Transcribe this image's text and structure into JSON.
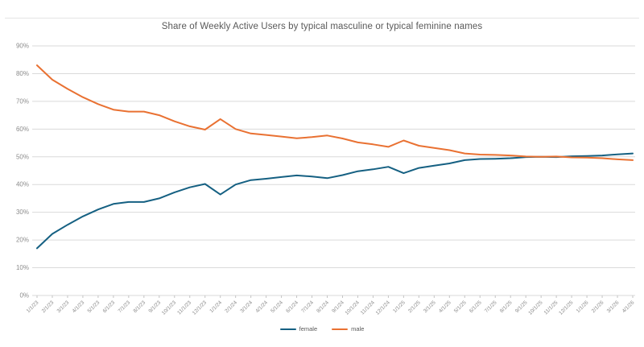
{
  "page": {
    "background": "#ffffff",
    "divider_color": "#e4e4e4"
  },
  "chart_data": {
    "type": "line",
    "title": "Share of Weekly Active Users by typical masculine or typical feminine names",
    "title_color": "#595959",
    "xlabel": "",
    "ylabel": "",
    "ylim": [
      0,
      90
    ],
    "ytick_step": 10,
    "grid": true,
    "gridline_color": "#dadada",
    "axis_tick_color": "#c3c3c3",
    "axis_label_color": "#8c8c8c",
    "legend_position": "bottom-center",
    "y_tick_labels": [
      "0%",
      "10%",
      "20%",
      "30%",
      "40%",
      "50%",
      "60%",
      "70%",
      "80%",
      "90%"
    ],
    "x_tick_labels": [
      "1/1/23",
      "2/1/23",
      "3/1/23",
      "4/1/23",
      "5/1/23",
      "6/1/23",
      "7/1/23",
      "8/1/23",
      "9/1/23",
      "10/1/23",
      "11/1/23",
      "12/1/23",
      "1/1/24",
      "2/1/24",
      "3/1/24",
      "4/1/24",
      "5/1/24",
      "6/1/24",
      "7/1/24",
      "8/1/24",
      "9/1/24",
      "10/1/24",
      "11/1/24",
      "12/1/24",
      "1/1/25",
      "2/1/25",
      "3/1/25",
      "4/1/25",
      "5/1/25",
      "6/1/25",
      "7/1/25",
      "8/1/25",
      "9/1/25",
      "10/1/25",
      "11/1/25",
      "12/1/25",
      "1/1/26",
      "2/1/26",
      "3/1/26",
      "4/1/26"
    ],
    "series": [
      {
        "name": "female",
        "color": "#156082",
        "values": [
          17.0,
          22.2,
          25.5,
          28.5,
          31.0,
          33.0,
          33.7,
          33.7,
          35.0,
          37.2,
          39.0,
          40.2,
          36.4,
          40.0,
          41.6,
          42.1,
          42.7,
          43.3,
          42.9,
          42.3,
          43.4,
          44.8,
          45.5,
          46.4,
          44.1,
          46.0,
          46.8,
          47.6,
          48.8,
          49.2,
          49.3,
          49.5,
          49.9,
          50.0,
          49.9,
          50.2,
          50.3,
          50.5,
          50.9,
          51.2
        ]
      },
      {
        "name": "male",
        "color": "#E97132",
        "values": [
          83.0,
          77.8,
          74.5,
          71.5,
          69.0,
          67.0,
          66.3,
          66.3,
          65.0,
          62.8,
          61.0,
          59.8,
          63.6,
          60.0,
          58.4,
          57.9,
          57.3,
          56.7,
          57.1,
          57.7,
          56.6,
          55.2,
          54.5,
          53.6,
          55.9,
          54.0,
          53.2,
          52.4,
          51.2,
          50.8,
          50.7,
          50.5,
          50.1,
          50.0,
          50.1,
          49.8,
          49.7,
          49.5,
          49.1,
          48.8
        ]
      }
    ]
  }
}
